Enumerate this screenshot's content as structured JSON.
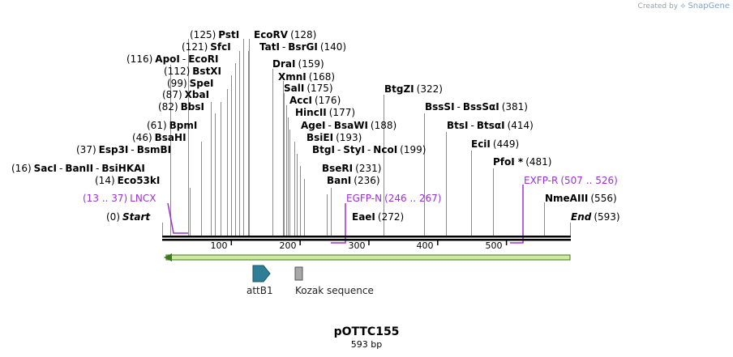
{
  "credit": {
    "prefix": "Created by",
    "brand": "SnapGene"
  },
  "map": {
    "name": "pOTTC155",
    "length_label": "593 bp",
    "total_bp": 593
  },
  "ticks": [
    100,
    200,
    300,
    400,
    500
  ],
  "sites": [
    {
      "id": "pst",
      "items": [
        {
          "pos": "(125)"
        },
        {
          "name": "PstI"
        }
      ]
    },
    {
      "id": "ecorv",
      "items": [
        {
          "name": "EcoRV"
        },
        {
          "pos": "(128)"
        }
      ]
    },
    {
      "id": "sfc",
      "items": [
        {
          "pos": "(121)"
        },
        {
          "name": "SfcI"
        }
      ]
    },
    {
      "id": "tat",
      "items": [
        {
          "name": "TatI"
        },
        {
          "sep": "-"
        },
        {
          "name": "BsrGI"
        },
        {
          "pos": "(140)"
        }
      ]
    },
    {
      "id": "apo",
      "items": [
        {
          "pos": "(116)"
        },
        {
          "name": "ApoI"
        },
        {
          "sep": "-"
        },
        {
          "name": "EcoRI"
        }
      ]
    },
    {
      "id": "dra",
      "items": [
        {
          "name": "DraI"
        },
        {
          "pos": "(159)"
        }
      ]
    },
    {
      "id": "bstx",
      "items": [
        {
          "pos": "(112)"
        },
        {
          "name": "BstXI"
        }
      ]
    },
    {
      "id": "xmn",
      "items": [
        {
          "name": "XmnI"
        },
        {
          "pos": "(168)"
        }
      ]
    },
    {
      "id": "spe",
      "items": [
        {
          "pos": "(99)"
        },
        {
          "name": "SpeI"
        }
      ]
    },
    {
      "id": "sal",
      "items": [
        {
          "name": "SalI"
        },
        {
          "pos": "(175)"
        }
      ]
    },
    {
      "id": "btgzi",
      "items": [
        {
          "name": "BtgZI"
        },
        {
          "pos": "(322)"
        }
      ]
    },
    {
      "id": "xba",
      "items": [
        {
          "pos": "(87)"
        },
        {
          "name": "XbaI"
        }
      ]
    },
    {
      "id": "acc",
      "items": [
        {
          "name": "AccI"
        },
        {
          "pos": "(176)"
        }
      ]
    },
    {
      "id": "bbs",
      "items": [
        {
          "pos": "(82)"
        },
        {
          "name": "BbsI"
        }
      ]
    },
    {
      "id": "hinc",
      "items": [
        {
          "name": "HincII"
        },
        {
          "pos": "(177)"
        }
      ]
    },
    {
      "id": "bsssi",
      "items": [
        {
          "name": "BssSI"
        },
        {
          "sep": "-"
        },
        {
          "name": "BssSαI"
        },
        {
          "pos": "(381)"
        }
      ]
    },
    {
      "id": "bpm",
      "items": [
        {
          "pos": "(61)"
        },
        {
          "name": "BpmI"
        }
      ]
    },
    {
      "id": "age",
      "items": [
        {
          "name": "AgeI"
        },
        {
          "sep": "-"
        },
        {
          "name": "BsaWI"
        },
        {
          "pos": "(188)"
        }
      ]
    },
    {
      "id": "bsti",
      "items": [
        {
          "name": "BtsI"
        },
        {
          "sep": "-"
        },
        {
          "name": "BtsαI"
        },
        {
          "pos": "(414)"
        }
      ]
    },
    {
      "id": "bsah",
      "items": [
        {
          "pos": "(46)"
        },
        {
          "name": "BsaHI"
        }
      ]
    },
    {
      "id": "bsie",
      "items": [
        {
          "name": "BsiEI"
        },
        {
          "pos": "(193)"
        }
      ]
    },
    {
      "id": "eci",
      "items": [
        {
          "name": "EciI"
        },
        {
          "pos": "(449)"
        }
      ]
    },
    {
      "id": "esp3",
      "items": [
        {
          "pos": "(37)"
        },
        {
          "name": "Esp3I"
        },
        {
          "sep": "-"
        },
        {
          "name": "BsmBI"
        }
      ]
    },
    {
      "id": "btgi",
      "items": [
        {
          "name": "BtgI"
        },
        {
          "sep": "-"
        },
        {
          "name": "StyI"
        },
        {
          "sep": "-"
        },
        {
          "name": "NcoI"
        },
        {
          "pos": "(199)"
        }
      ]
    },
    {
      "id": "pfo",
      "items": [
        {
          "name": "PfoI *"
        },
        {
          "pos": "(481)"
        }
      ]
    },
    {
      "id": "sac",
      "items": [
        {
          "pos": "(16)"
        },
        {
          "name": "SacI"
        },
        {
          "sep": "-"
        },
        {
          "name": "BanII"
        },
        {
          "sep": "-"
        },
        {
          "name": "BsiHKAI"
        }
      ]
    },
    {
      "id": "bser",
      "items": [
        {
          "name": "BseRI"
        },
        {
          "pos": "(231)"
        }
      ]
    },
    {
      "id": "eco53",
      "items": [
        {
          "pos": "(14)"
        },
        {
          "name": "Eco53kI"
        }
      ]
    },
    {
      "id": "ban",
      "items": [
        {
          "name": "BanI"
        },
        {
          "pos": "(236)"
        }
      ]
    },
    {
      "id": "nmea",
      "items": [
        {
          "name": "NmeAIII"
        },
        {
          "pos": "(556)"
        }
      ]
    },
    {
      "id": "start",
      "items": [
        {
          "pos": "(0)"
        },
        {
          "name": "Start",
          "italic": true
        }
      ]
    },
    {
      "id": "eae",
      "items": [
        {
          "name": "EaeI"
        },
        {
          "pos": "(272)"
        }
      ]
    },
    {
      "id": "end",
      "items": [
        {
          "name": "End",
          "italic": true
        },
        {
          "pos": "(593)"
        }
      ]
    }
  ],
  "primers": [
    {
      "id": "lncx",
      "items": [
        {
          "pos": "(13 .. 37)"
        },
        {
          "name": "LNCX"
        }
      ]
    },
    {
      "id": "egfpn",
      "items": [
        {
          "name": "EGFP-N"
        },
        {
          "pos": "(246 .. 267)"
        }
      ]
    },
    {
      "id": "exfpr",
      "items": [
        {
          "name": "EXFP-R"
        },
        {
          "pos": "(507 .. 526)"
        }
      ]
    }
  ],
  "features": [
    {
      "id": "attb1",
      "label": "attB1",
      "color": "#2e7f95"
    },
    {
      "id": "kozak",
      "label": "Kozak sequence",
      "color": "#a8a8a8"
    }
  ],
  "colors": {
    "primer": "#9b30d9",
    "orf_fill": "#cfe8a6",
    "orf_stroke": "#3d7a1c"
  }
}
